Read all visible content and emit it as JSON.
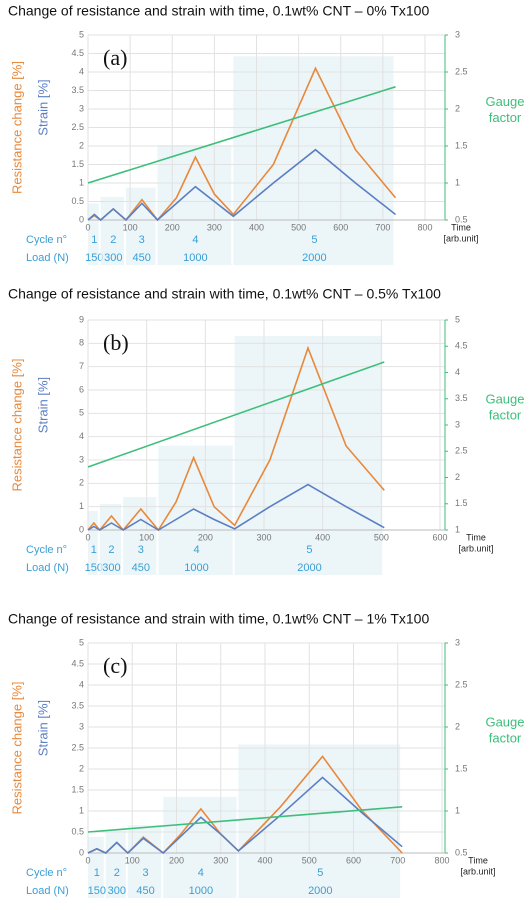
{
  "chart_data": [
    {
      "type": "line",
      "title": "Change of resistance and strain with time, 0.1wt% CNT – 0% Tx100",
      "panel": "(a)",
      "ylabels": [
        "Resistance change [%]",
        "Strain [%]"
      ],
      "y2label": [
        "Gauge",
        "factor"
      ],
      "xlabel": "Time",
      "xunit": "[arb.unit]",
      "xlim": [
        0,
        800
      ],
      "xticks": [
        0,
        100,
        200,
        300,
        400,
        500,
        600,
        700,
        800
      ],
      "ylim": [
        0,
        5
      ],
      "yticks": [
        0,
        0.5,
        1,
        1.5,
        2,
        2.5,
        3,
        3.5,
        4,
        4.5,
        5
      ],
      "y2lim": [
        0.5,
        3
      ],
      "y2ticks": [
        0.5,
        1,
        1.5,
        2,
        2.5,
        3
      ],
      "grid": true,
      "cycle_label": "Cycle n°",
      "load_label": "Load (N)",
      "cycles": [
        {
          "n": 1,
          "load": 150,
          "start": 0,
          "end": 30
        },
        {
          "n": 2,
          "load": 300,
          "start": 30,
          "end": 90
        },
        {
          "n": 3,
          "load": 450,
          "start": 90,
          "end": 165
        },
        {
          "n": 4,
          "load": 1000,
          "start": 165,
          "end": 345
        },
        {
          "n": 5,
          "load": 2000,
          "start": 345,
          "end": 730
        }
      ],
      "series": [
        {
          "name": "Resistance change",
          "color": "#e8883a",
          "x": [
            0,
            15,
            30,
            60,
            90,
            128,
            165,
            210,
            255,
            300,
            345,
            440,
            540,
            635,
            730
          ],
          "values": [
            0,
            0.12,
            0,
            0.3,
            0,
            0.55,
            0,
            0.6,
            1.7,
            0.7,
            0.15,
            1.5,
            4.1,
            1.9,
            0.6
          ]
        },
        {
          "name": "Strain",
          "color": "#5b7fc4",
          "x": [
            0,
            15,
            30,
            60,
            90,
            128,
            165,
            210,
            255,
            300,
            345,
            440,
            540,
            635,
            730
          ],
          "values": [
            0,
            0.15,
            0,
            0.3,
            0,
            0.45,
            0,
            0.45,
            0.9,
            0.5,
            0.1,
            1.0,
            1.9,
            1.0,
            0.15
          ]
        },
        {
          "name": "Gauge factor",
          "color": "#3cbf7a",
          "axis": "y2",
          "x": [
            0,
            730
          ],
          "values": [
            1.0,
            2.3
          ]
        }
      ]
    },
    {
      "type": "line",
      "title": "Change of resistance and strain with time, 0.1wt% CNT – 0.5% Tx100",
      "panel": "(b)",
      "ylabels": [
        "Resistance change [%]",
        "Strain [%]"
      ],
      "y2label": [
        "Gauge",
        "factor"
      ],
      "xlabel": "Time",
      "xunit": "[arb.unit]",
      "xlim": [
        0,
        600
      ],
      "xticks": [
        0,
        100,
        200,
        300,
        400,
        500,
        600
      ],
      "ylim": [
        0,
        9
      ],
      "yticks": [
        0,
        1,
        2,
        3,
        4,
        5,
        6,
        7,
        8,
        9
      ],
      "y2lim": [
        1,
        5
      ],
      "y2ticks": [
        1,
        1.5,
        2,
        2.5,
        3,
        3.5,
        4,
        4.5,
        5
      ],
      "grid": true,
      "cycle_label": "Cycle n°",
      "load_label": "Load (N)",
      "cycles": [
        {
          "n": 1,
          "load": 150,
          "start": 0,
          "end": 20
        },
        {
          "n": 2,
          "load": 300,
          "start": 20,
          "end": 60
        },
        {
          "n": 3,
          "load": 450,
          "start": 60,
          "end": 120
        },
        {
          "n": 4,
          "load": 1000,
          "start": 120,
          "end": 250
        },
        {
          "n": 5,
          "load": 2000,
          "start": 250,
          "end": 505
        }
      ],
      "series": [
        {
          "name": "Resistance change",
          "color": "#e8883a",
          "x": [
            0,
            10,
            20,
            40,
            60,
            90,
            120,
            150,
            180,
            215,
            250,
            310,
            375,
            440,
            505
          ],
          "values": [
            0,
            0.3,
            0,
            0.6,
            0,
            0.9,
            0,
            1.2,
            3.1,
            1.0,
            0.2,
            3.0,
            7.8,
            3.6,
            1.7
          ]
        },
        {
          "name": "Strain",
          "color": "#5b7fc4",
          "x": [
            0,
            10,
            20,
            40,
            60,
            90,
            120,
            150,
            180,
            215,
            250,
            310,
            375,
            440,
            505
          ],
          "values": [
            0,
            0.15,
            0,
            0.3,
            0,
            0.45,
            0,
            0.45,
            0.9,
            0.45,
            0.05,
            1.0,
            1.95,
            1.0,
            0.1
          ]
        },
        {
          "name": "Gauge factor",
          "color": "#3cbf7a",
          "axis": "y2",
          "x": [
            0,
            505
          ],
          "values": [
            2.2,
            4.2
          ]
        }
      ]
    },
    {
      "type": "line",
      "title": "Change of resistance and strain with time, 0.1wt% CNT – 1% Tx100",
      "panel": "(c)",
      "ylabels": [
        "Resistance change [%]",
        "Strain [%]"
      ],
      "y2label": [
        "Gauge",
        "factor"
      ],
      "xlabel": "Time",
      "xunit": "[arb.unit]",
      "xlim": [
        0,
        800
      ],
      "xticks": [
        0,
        100,
        200,
        300,
        400,
        500,
        600,
        700,
        800
      ],
      "ylim": [
        0,
        5
      ],
      "yticks": [
        0,
        0.5,
        1,
        1.5,
        2,
        2.5,
        3,
        3.5,
        4,
        4.5,
        5
      ],
      "y2lim": [
        0.5,
        3
      ],
      "y2ticks": [
        0.5,
        1,
        1.5,
        2,
        2.5,
        3
      ],
      "grid": true,
      "cycle_label": "Cycle n°",
      "load_label": "Load (N)",
      "cycles": [
        {
          "n": 1,
          "load": 150,
          "start": 0,
          "end": 40
        },
        {
          "n": 2,
          "load": 300,
          "start": 40,
          "end": 90
        },
        {
          "n": 3,
          "load": 450,
          "start": 90,
          "end": 170
        },
        {
          "n": 4,
          "load": 1000,
          "start": 170,
          "end": 340
        },
        {
          "n": 5,
          "load": 2000,
          "start": 340,
          "end": 710
        }
      ],
      "series": [
        {
          "name": "Resistance change",
          "color": "#e8883a",
          "x": [
            0,
            20,
            40,
            65,
            90,
            125,
            170,
            210,
            255,
            300,
            340,
            435,
            530,
            620,
            710
          ],
          "values": [
            0,
            0.1,
            0,
            0.25,
            0,
            0.38,
            0,
            0.45,
            1.05,
            0.45,
            0.05,
            1.1,
            2.3,
            1.0,
            0
          ]
        },
        {
          "name": "Strain",
          "color": "#5b7fc4",
          "x": [
            0,
            20,
            40,
            65,
            90,
            125,
            170,
            210,
            255,
            300,
            340,
            435,
            530,
            620,
            710
          ],
          "values": [
            0,
            0.1,
            0,
            0.25,
            0,
            0.35,
            0,
            0.4,
            0.85,
            0.45,
            0.05,
            0.9,
            1.8,
            0.95,
            0.15
          ]
        },
        {
          "name": "Gauge factor",
          "color": "#3cbf7a",
          "axis": "y2",
          "x": [
            0,
            710
          ],
          "values": [
            0.75,
            1.05
          ]
        }
      ]
    }
  ]
}
